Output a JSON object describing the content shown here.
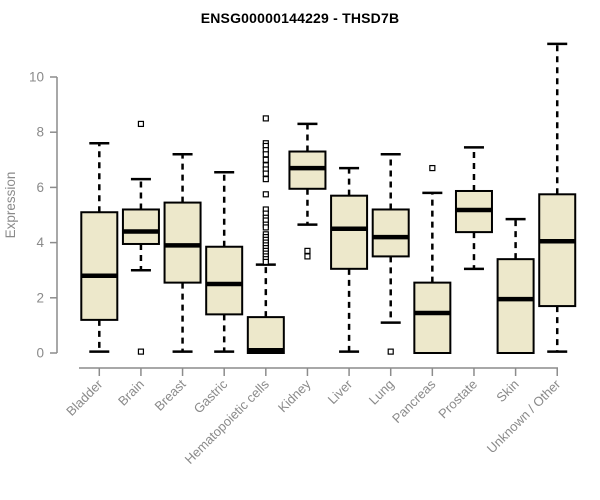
{
  "title": "ENSG00000144229 - THSD7B",
  "colors": {
    "background": "#ffffff",
    "title_text": "#000000",
    "axis": "#8c8c8c",
    "tick_text": "#8a8a8a",
    "box_fill": "#EDE8CB",
    "box_stroke": "#000000",
    "outlier_fill": "#ffffff"
  },
  "chart_data": {
    "type": "boxplot",
    "title": "ENSG00000144229 - THSD7B",
    "ylabel": "Expression",
    "xlabel": "",
    "ylim": [
      -0.5,
      11.5
    ],
    "yticks": [
      0,
      2,
      4,
      6,
      8,
      10
    ],
    "grid": false,
    "x_label_rotation_deg": 45,
    "whisker_style": "dashed",
    "categories": [
      "Bladder",
      "Brain",
      "Breast",
      "Gastric",
      "Hematopoietic cells",
      "Kidney",
      "Liver",
      "Lung",
      "Pancreas",
      "Prostate",
      "Skin",
      "Unknown / Other"
    ],
    "series": [
      {
        "category": "Bladder",
        "whisker_low": 0.05,
        "q1": 1.2,
        "median": 2.8,
        "q3": 5.1,
        "whisker_high": 7.6,
        "outliers": []
      },
      {
        "category": "Brain",
        "whisker_low": 3.0,
        "q1": 3.95,
        "median": 4.4,
        "q3": 5.2,
        "whisker_high": 6.3,
        "outliers": [
          8.3,
          0.05
        ]
      },
      {
        "category": "Breast",
        "whisker_low": 0.05,
        "q1": 2.55,
        "median": 3.9,
        "q3": 5.45,
        "whisker_high": 7.2,
        "outliers": []
      },
      {
        "category": "Gastric",
        "whisker_low": 0.05,
        "q1": 1.4,
        "median": 2.5,
        "q3": 3.85,
        "whisker_high": 6.55,
        "outliers": []
      },
      {
        "category": "Hematopoietic cells",
        "whisker_low": 0.0,
        "q1": 0.0,
        "median": 0.1,
        "q3": 1.3,
        "whisker_high": 3.2,
        "outliers": [
          8.5,
          7.6,
          7.5,
          7.35,
          7.2,
          7.0,
          6.8,
          6.65,
          6.5,
          6.3,
          5.75,
          5.2,
          5.05,
          4.9,
          4.8,
          4.65,
          4.55,
          4.3,
          4.2,
          4.1,
          4.0,
          3.9,
          3.8,
          3.7,
          3.6,
          3.5,
          3.4,
          3.3
        ]
      },
      {
        "category": "Kidney",
        "whisker_low": 4.65,
        "q1": 5.95,
        "median": 6.7,
        "q3": 7.3,
        "whisker_high": 8.3,
        "outliers": [
          3.7,
          3.5
        ]
      },
      {
        "category": "Liver",
        "whisker_low": 0.05,
        "q1": 3.05,
        "median": 4.5,
        "q3": 5.7,
        "whisker_high": 6.7,
        "outliers": []
      },
      {
        "category": "Lung",
        "whisker_low": 1.1,
        "q1": 3.5,
        "median": 4.2,
        "q3": 5.2,
        "whisker_high": 7.2,
        "outliers": [
          0.05
        ]
      },
      {
        "category": "Pancreas",
        "whisker_low": 0.0,
        "q1": 0.0,
        "median": 1.45,
        "q3": 2.55,
        "whisker_high": 5.8,
        "outliers": [
          6.7
        ]
      },
      {
        "category": "Prostate",
        "whisker_low": 3.05,
        "q1": 4.38,
        "median": 5.18,
        "q3": 5.87,
        "whisker_high": 7.45,
        "outliers": []
      },
      {
        "category": "Skin",
        "whisker_low": 0.0,
        "q1": 0.0,
        "median": 1.95,
        "q3": 3.4,
        "whisker_high": 4.85,
        "outliers": []
      },
      {
        "category": "Unknown / Other",
        "whisker_low": 0.05,
        "q1": 1.7,
        "median": 4.05,
        "q3": 5.75,
        "whisker_high": 11.2,
        "outliers": []
      }
    ]
  }
}
